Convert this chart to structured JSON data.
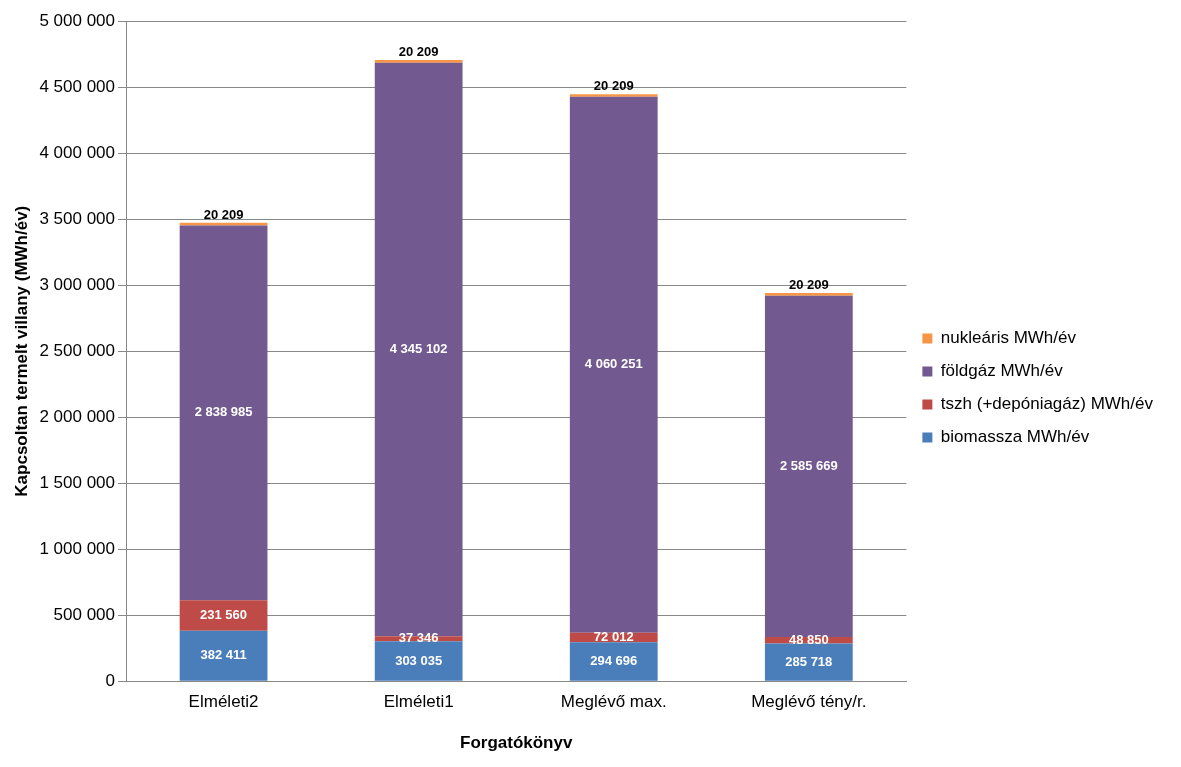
{
  "chart_data": {
    "type": "bar",
    "stacked": true,
    "xlabel": "Forgatókönyv",
    "ylabel": "Kapcsoltan termelt villany (MWh/év)",
    "categories": [
      "Elméleti2",
      "Elméleti1",
      "Meglévő max.",
      "Meglévő tény/r."
    ],
    "series": [
      {
        "name": "biomassza MWh/év",
        "color": "#4a7ebb",
        "values": [
          382411,
          303035,
          294696,
          285718
        ],
        "value_labels": [
          "382 411",
          "303 035",
          "294 696",
          "285 718"
        ]
      },
      {
        "name": "tszh (+depóniagáz) MWh/év",
        "color": "#be4b48",
        "values": [
          231560,
          37346,
          72012,
          48850
        ],
        "value_labels": [
          "231 560",
          "37 346",
          "72 012",
          "48 850"
        ]
      },
      {
        "name": "földgáz MWh/év",
        "color": "#72598f",
        "values": [
          2838985,
          4345102,
          4060251,
          2585669
        ],
        "value_labels": [
          "2 838 985",
          "4 345 102",
          "4 060 251",
          "2 585 669"
        ]
      },
      {
        "name": "nukleáris MWh/év",
        "color": "#f79646",
        "values": [
          20209,
          20209,
          20209,
          20209
        ],
        "value_labels": [
          "20 209",
          "20 209",
          "20 209",
          "20 209"
        ]
      }
    ],
    "ylim": [
      0,
      5000000
    ],
    "yticks": [
      0,
      {
        "value": 500000,
        "label": "500 000"
      },
      {
        "value": 1000000,
        "label": "1 000 000"
      },
      {
        "value": 1500000,
        "label": "1 500 000"
      },
      {
        "value": 2000000,
        "label": "2 000 000"
      },
      {
        "value": 2500000,
        "label": "2 500 000"
      },
      {
        "value": 3000000,
        "label": "3 000 000"
      },
      {
        "value": 3500000,
        "label": "3 500 000"
      },
      {
        "value": 4000000,
        "label": "4 000 000"
      },
      {
        "value": 4500000,
        "label": "4 500 000"
      },
      {
        "value": 5000000,
        "label": "5 000 000"
      }
    ],
    "grid": "y",
    "legend": "right"
  }
}
